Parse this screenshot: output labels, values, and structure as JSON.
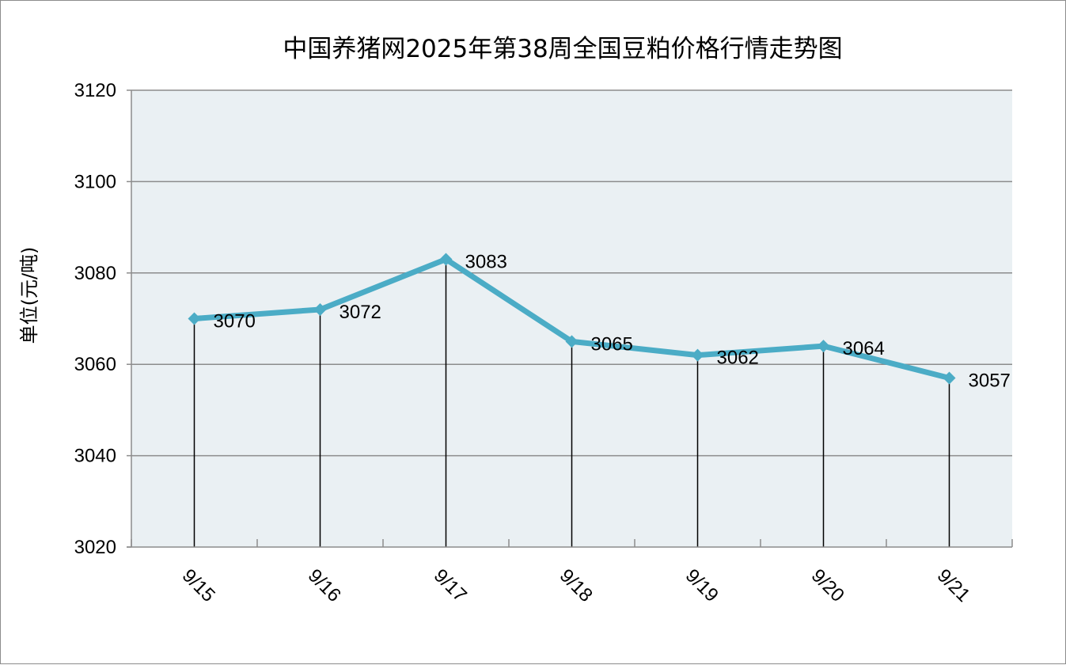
{
  "chart_data": {
    "type": "line",
    "title": "中国养猪网2025年第38周全国豆粕价格行情走势图",
    "xlabel": "",
    "ylabel": "单位(元/吨)",
    "categories": [
      "9/15",
      "9/16",
      "9/17",
      "9/18",
      "9/19",
      "9/20",
      "9/21"
    ],
    "series": [
      {
        "values": [
          3070,
          3072,
          3083,
          3065,
          3062,
          3064,
          3057
        ]
      }
    ],
    "ylim": [
      3020,
      3120
    ],
    "yticks": [
      3020,
      3040,
      3060,
      3080,
      3100,
      3120
    ],
    "grid": true,
    "drop_lines": true,
    "data_labels": true,
    "legend": "none",
    "colors": {
      "line": "#4bacc6",
      "plot_background": "#eaf0f3",
      "gridline": "#8c8c8c",
      "drop_line": "#000000"
    }
  }
}
